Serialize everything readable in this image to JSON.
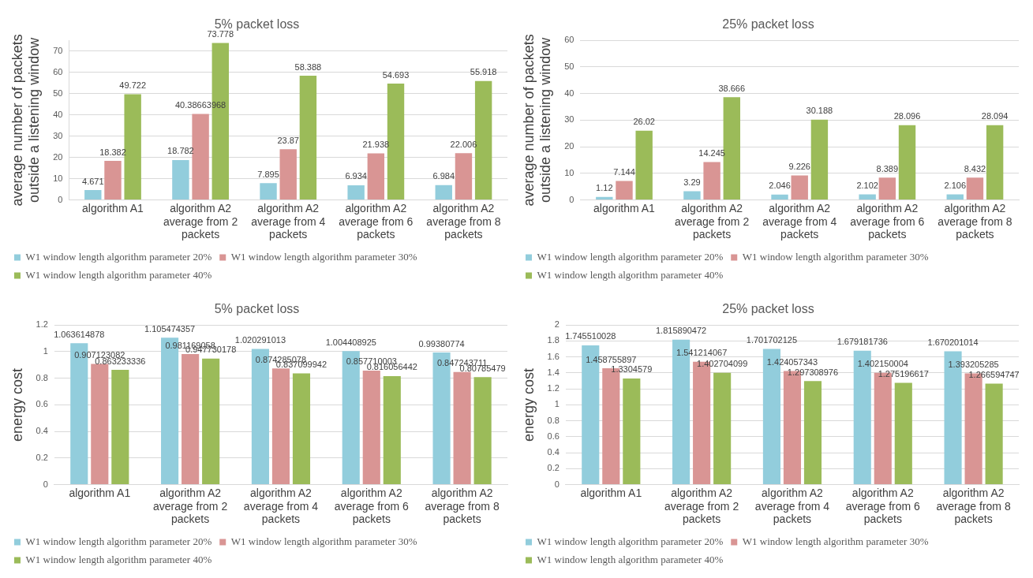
{
  "chart_data": [
    {
      "type": "bar",
      "title": "5% packet loss",
      "ylabel": "average number of packets outside a listening window",
      "categories": [
        "algorithm A1",
        "algorithm A2 average from 2 packets",
        "algorithm A2 average from 4 packets",
        "algorithm A2 average from 6 packets",
        "algorithm A2 average from 8 packets"
      ],
      "series": [
        {
          "name": "W1 window length algorithm parameter 20%",
          "color": "#92cddc",
          "values": [
            4.671,
            18.782,
            7.895,
            6.934,
            6.984
          ]
        },
        {
          "name": "W1 window length algorithm parameter 30%",
          "color": "#d99594",
          "values": [
            18.382,
            40.38663968,
            23.87,
            21.938,
            22.006
          ]
        },
        {
          "name": "W1 window length algorithm parameter 40%",
          "color": "#9bbb59",
          "values": [
            49.722,
            73.778,
            58.388,
            54.693,
            55.918
          ]
        }
      ],
      "ylim": [
        0,
        75
      ],
      "yticks": [
        0,
        10,
        20,
        30,
        40,
        50,
        60,
        70
      ],
      "grid": "y",
      "legend": "bottom",
      "data_labels": true
    },
    {
      "type": "bar",
      "title": "25% packet loss",
      "ylabel": "average number of packets outside a listening window",
      "categories": [
        "algorithm A1",
        "algorithm A2 average from 2 packets",
        "algorithm A2 average from 4 packets",
        "algorithm A2 average from 6 packets",
        "algorithm A2 average from 8 packets"
      ],
      "series": [
        {
          "name": "W1 window length algorithm parameter 20%",
          "color": "#92cddc",
          "values": [
            1.12,
            3.29,
            2.046,
            2.102,
            2.106
          ]
        },
        {
          "name": "W1 window length algorithm parameter 30%",
          "color": "#d99594",
          "values": [
            7.144,
            14.245,
            9.226,
            8.389,
            8.432
          ]
        },
        {
          "name": "W1 window length algorithm parameter 40%",
          "color": "#9bbb59",
          "values": [
            26.02,
            38.666,
            30.188,
            28.096,
            28.094
          ]
        }
      ],
      "ylim": [
        0,
        60
      ],
      "yticks": [
        0,
        10,
        20,
        30,
        40,
        50,
        60
      ],
      "grid": "y",
      "legend": "bottom",
      "data_labels": true
    },
    {
      "type": "bar",
      "title": "5% packet loss",
      "ylabel": "energy cost",
      "categories": [
        "algorithm A1",
        "algorithm A2 average from 2 packets",
        "algorithm A2 average from 4 packets",
        "algorithm A2 average from 6 packets",
        "algorithm A2 average from 8 packets"
      ],
      "series": [
        {
          "name": "W1 window length algorithm parameter 20%",
          "color": "#92cddc",
          "values": [
            1.063614878,
            1.105474357,
            1.020291013,
            1.004408925,
            0.99380774
          ]
        },
        {
          "name": "W1 window length algorithm parameter 30%",
          "color": "#d99594",
          "values": [
            0.907123082,
            0.981169058,
            0.874285078,
            0.857710003,
            0.847243711
          ]
        },
        {
          "name": "W1 window length algorithm parameter 40%",
          "color": "#9bbb59",
          "values": [
            0.863233336,
            0.947730178,
            0.837099942,
            0.816056442,
            0.80785479
          ]
        }
      ],
      "ylim": [
        0,
        1.2
      ],
      "yticks": [
        0,
        0.2,
        0.4,
        0.6,
        0.8,
        1,
        1.2
      ],
      "grid": "y",
      "legend": "bottom",
      "data_labels": true
    },
    {
      "type": "bar",
      "title": "25% packet loss",
      "ylabel": "energy cost",
      "categories": [
        "algorithm A1",
        "algorithm A2 average from 2 packets",
        "algorithm A2 average from 4 packets",
        "algorithm A2 average from 6 packets",
        "algorithm A2 average from 8 packets"
      ],
      "series": [
        {
          "name": "W1 window length algorithm parameter 20%",
          "color": "#92cddc",
          "values": [
            1.745510028,
            1.815890472,
            1.701702125,
            1.679181736,
            1.670201014
          ]
        },
        {
          "name": "W1 window length algorithm parameter 30%",
          "color": "#d99594",
          "values": [
            1.458755897,
            1.541214067,
            1.424057343,
            1.402150004,
            1.393205285
          ]
        },
        {
          "name": "W1 window length algorithm parameter 40%",
          "color": "#9bbb59",
          "values": [
            1.3304579,
            1.402704099,
            1.297308976,
            1.275196617,
            1.266594747
          ]
        }
      ],
      "ylim": [
        0,
        2
      ],
      "yticks": [
        0,
        0.2,
        0.4,
        0.6,
        0.8,
        1,
        1.2,
        1.4,
        1.6,
        1.8,
        2
      ],
      "grid": "y",
      "legend": "bottom",
      "data_labels": true
    }
  ]
}
